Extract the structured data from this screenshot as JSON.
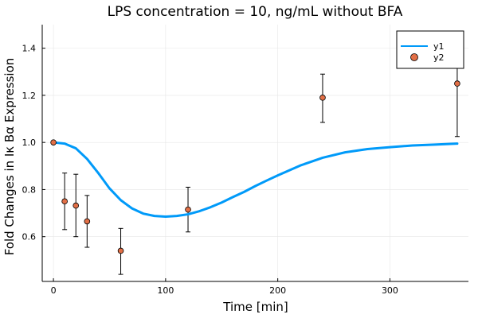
{
  "chart_data": {
    "type": "line",
    "title": "LPS concentration = 10, ng/mL without BFA",
    "xlabel": "Time [min]",
    "ylabel": "Fold Changes in Iκ Bα Expression",
    "xlim": [
      -10,
      370
    ],
    "ylim": [
      0.41,
      1.5
    ],
    "xticks": [
      0,
      100,
      200,
      300
    ],
    "yticks": [
      0.6,
      0.8,
      1.0,
      1.2,
      1.4
    ],
    "xtick_labels": [
      "0",
      "100",
      "200",
      "300"
    ],
    "ytick_labels": [
      "0.6",
      "0.8",
      "1.0",
      "1.2",
      "1.4"
    ],
    "grid": true,
    "legend_position": "top-right",
    "series": [
      {
        "name": "y1",
        "kind": "line",
        "color": "#009af9",
        "x": [
          0,
          10,
          20,
          30,
          40,
          50,
          60,
          70,
          80,
          90,
          100,
          110,
          120,
          130,
          140,
          150,
          160,
          170,
          180,
          190,
          200,
          220,
          240,
          260,
          280,
          300,
          320,
          340,
          360
        ],
        "y": [
          1.0,
          0.995,
          0.975,
          0.93,
          0.87,
          0.805,
          0.755,
          0.72,
          0.698,
          0.688,
          0.685,
          0.688,
          0.695,
          0.708,
          0.725,
          0.745,
          0.768,
          0.79,
          0.815,
          0.838,
          0.86,
          0.902,
          0.935,
          0.958,
          0.972,
          0.98,
          0.987,
          0.991,
          0.995
        ]
      },
      {
        "name": "y2",
        "kind": "scatter",
        "color": "#e26f46",
        "x": [
          0,
          10,
          20,
          30,
          60,
          120,
          240,
          360
        ],
        "y": [
          1.0,
          0.75,
          0.732,
          0.665,
          0.54,
          0.715,
          1.19,
          1.25
        ],
        "err_low": [
          1.0,
          0.63,
          0.6,
          0.555,
          0.44,
          0.62,
          1.085,
          1.025
        ],
        "err_high": [
          1.0,
          0.87,
          0.865,
          0.775,
          0.635,
          0.81,
          1.29,
          1.47
        ]
      }
    ]
  }
}
